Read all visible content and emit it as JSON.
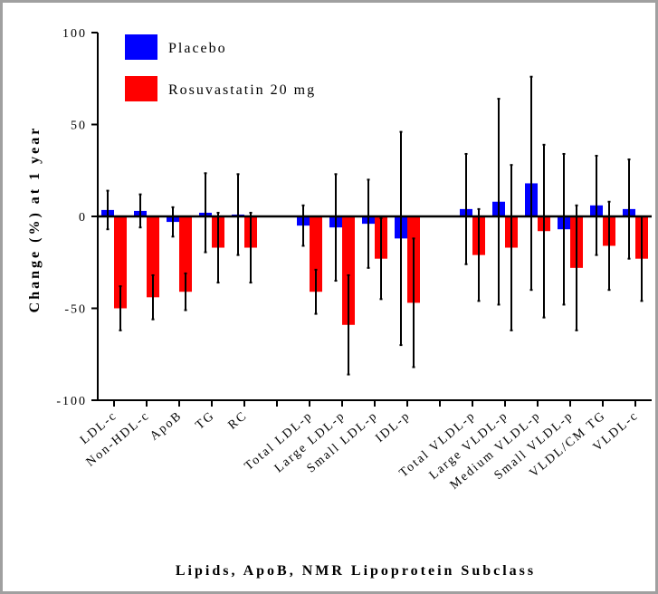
{
  "chart_data": {
    "type": "bar",
    "ylabel": "Change (%) at 1 year",
    "xlabel": "Lipids, ApoB, NMR Lipoprotein Subclass",
    "categories": [
      "LDL-c",
      "Non-HDL-c",
      "ApoB",
      "TG",
      "RC",
      null,
      "Total LDL-p",
      "Large LDL-p",
      "Small LDL-p",
      "IDL-p",
      null,
      "Total VLDL-p",
      "Large VLDL-p",
      "Medium VLDL-p",
      "Small VLDL-p",
      "VLDL/CM TG",
      "VLDL-c"
    ],
    "series": [
      {
        "name": "Placebo",
        "color": "#0000ff",
        "values": [
          3.5,
          3,
          -3,
          2,
          1,
          null,
          -5,
          -6,
          -4,
          -12,
          null,
          4,
          8,
          18,
          -7,
          6,
          4
        ],
        "errors": [
          10.5,
          9,
          8,
          21.5,
          22,
          null,
          11,
          29,
          24,
          58,
          null,
          30,
          56,
          58,
          41,
          27,
          27
        ]
      },
      {
        "name": "Rosuvastatin 20 mg",
        "color": "#ff0000",
        "values": [
          -50,
          -44,
          -41,
          -17,
          -17,
          null,
          -41,
          -59,
          -23,
          -47,
          null,
          -21,
          -17,
          -8,
          -28,
          -16,
          -23
        ],
        "errors": [
          12,
          12,
          10,
          19,
          19,
          null,
          12,
          27,
          22,
          35,
          null,
          25,
          45,
          47,
          34,
          24,
          23
        ]
      }
    ],
    "ylim": [
      -100,
      100
    ],
    "yticks": [
      -100,
      -50,
      0,
      50,
      100
    ],
    "legend": "top-left"
  }
}
